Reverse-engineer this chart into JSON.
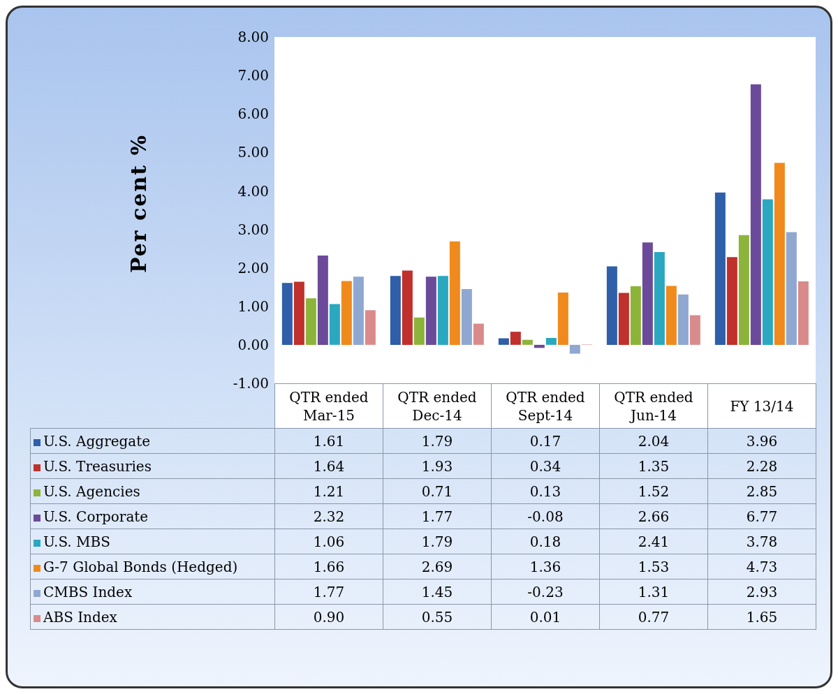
{
  "chart_data": {
    "type": "bar",
    "ylabel": "Per cent %",
    "categories": [
      "QTR ended Mar-15",
      "QTR ended Dec-14",
      "QTR ended Sept-14",
      "QTR ended Jun-14",
      "FY 13/14"
    ],
    "series": [
      {
        "name": "U.S. Aggregate",
        "color": "#2e5fa8",
        "values": [
          1.61,
          1.79,
          0.17,
          2.04,
          3.96
        ],
        "value_labels": [
          "1.61",
          "1.79",
          "0.17",
          "2.04",
          "3.96"
        ]
      },
      {
        "name": "U.S. Treasuries",
        "color": "#c0302c",
        "values": [
          1.64,
          1.93,
          0.34,
          1.35,
          2.28
        ],
        "value_labels": [
          "1.64",
          "1.93",
          "0.34",
          "1.35",
          "2.28"
        ]
      },
      {
        "name": "U.S. Agencies",
        "color": "#8db43a",
        "values": [
          1.21,
          0.71,
          0.13,
          1.52,
          2.85
        ],
        "value_labels": [
          "1.21",
          "0.71",
          "0.13",
          "1.52",
          "2.85"
        ]
      },
      {
        "name": "U.S. Corporate",
        "color": "#6c4a9a",
        "values": [
          2.32,
          1.77,
          -0.08,
          2.66,
          6.77
        ],
        "value_labels": [
          "2.32",
          "1.77",
          "-0.08",
          "2.66",
          "6.77"
        ]
      },
      {
        "name": "U.S. MBS",
        "color": "#2aa8c0",
        "values": [
          1.06,
          1.79,
          0.18,
          2.41,
          3.78
        ],
        "value_labels": [
          "1.06",
          "1.79",
          "0.18",
          "2.41",
          "3.78"
        ]
      },
      {
        "name": "G-7 Global Bonds (Hedged)",
        "color": "#f08a1d",
        "values": [
          1.66,
          2.69,
          1.36,
          1.53,
          4.73
        ],
        "value_labels": [
          "1.66",
          "2.69",
          "1.36",
          "1.53",
          "4.73"
        ]
      },
      {
        "name": "CMBS Index",
        "color": "#8fa8d2",
        "values": [
          1.77,
          1.45,
          -0.23,
          1.31,
          2.93
        ],
        "value_labels": [
          "1.77",
          "1.45",
          "-0.23",
          "1.31",
          "2.93"
        ]
      },
      {
        "name": "ABS Index",
        "color": "#d98b8b",
        "values": [
          0.9,
          0.55,
          0.01,
          0.77,
          1.65
        ],
        "value_labels": [
          "0.90",
          "0.55",
          "0.01",
          "0.77",
          "1.65"
        ]
      }
    ],
    "ylim": [
      -1,
      8
    ],
    "yticks": [
      {
        "value": -1,
        "label": "-1.00"
      },
      {
        "value": 0,
        "label": "0.00"
      },
      {
        "value": 1,
        "label": "1.00"
      },
      {
        "value": 2,
        "label": "2.00"
      },
      {
        "value": 3,
        "label": "3.00"
      },
      {
        "value": 4,
        "label": "4.00"
      },
      {
        "value": 5,
        "label": "5.00"
      },
      {
        "value": 6,
        "label": "6.00"
      },
      {
        "value": 7,
        "label": "7.00"
      },
      {
        "value": 8,
        "label": "8.00"
      }
    ],
    "legend": "bottom",
    "grid": false
  }
}
